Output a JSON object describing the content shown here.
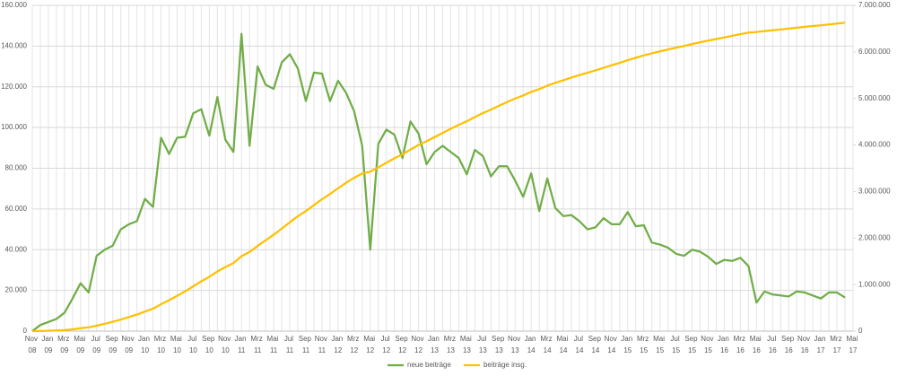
{
  "chart_data": {
    "type": "line",
    "categories": [
      "Nov 08",
      null,
      "Jan 09",
      null,
      "Mrz 09",
      null,
      "Mai 09",
      null,
      "Jul 09",
      null,
      "Sep 09",
      null,
      "Nov 09",
      null,
      "Jan 10",
      null,
      "Mrz 10",
      null,
      "Mai 10",
      null,
      "Jul 10",
      null,
      "Sep 10",
      null,
      "Nov 10",
      null,
      "Jan 11",
      null,
      "Mrz 11",
      null,
      "Mai 11",
      null,
      "Jul 11",
      null,
      "Sep 11",
      null,
      "Nov 11",
      null,
      "Jan 12",
      null,
      "Mrz 12",
      null,
      "Mai 12",
      null,
      "Jul 12",
      null,
      "Sep 12",
      null,
      "Nov 12",
      null,
      "Jan 13",
      null,
      "Mrz 13",
      null,
      "Mai 13",
      null,
      "Jul 13",
      null,
      "Sep 13",
      null,
      "Nov 13",
      null,
      "Jan 14",
      null,
      "Mrz 14",
      null,
      "Mai 14",
      null,
      "Jul 14",
      null,
      "Sep 14",
      null,
      "Nov 14",
      null,
      "Jan 15",
      null,
      "Mrz 15",
      null,
      "Mai 15",
      null,
      "Jul 15",
      null,
      "Sep 15",
      null,
      "Nov 15",
      null,
      "Jan 16",
      null,
      "Mrz 16",
      null,
      "Mai 16",
      null,
      "Jul 16",
      null,
      "Sep 16",
      null,
      "Nov 16",
      null,
      "Jan 17",
      null,
      "Mrz 17",
      null,
      "Mai 17"
    ],
    "series": [
      {
        "name": "neue beiträge",
        "color": "#70ad47",
        "values": [
          0,
          3000,
          4500,
          6000,
          9000,
          16000,
          23500,
          19000,
          37000,
          40000,
          42000,
          50000,
          52500,
          54000,
          65000,
          61000,
          95000,
          87000,
          95000,
          95500,
          107000,
          109000,
          96000,
          115000,
          94000,
          88000,
          146000,
          91000,
          130000,
          121000,
          119000,
          132000,
          136000,
          129000,
          113000,
          127000,
          126500,
          113000,
          123000,
          117000,
          108000,
          91000,
          40000,
          92000,
          99000,
          96500,
          85000,
          103000,
          97000,
          82000,
          88000,
          91000,
          88000,
          85000,
          77000,
          89000,
          86000,
          76000,
          81000,
          81000,
          74000,
          66000,
          77500,
          59000,
          75000,
          60500,
          56500,
          57000,
          54000,
          50000,
          51000,
          55500,
          52500,
          52500,
          58500,
          51500,
          52000,
          43500,
          42500,
          41000,
          38000,
          37000,
          40000,
          39000,
          36500,
          33000,
          35000,
          34500,
          36000,
          32000,
          14000,
          19500,
          18000,
          17500,
          17000,
          19500,
          19000,
          17500,
          16000,
          19000,
          19000,
          16500,
          null
        ]
      },
      {
        "name": "beiträge insg.",
        "color": "#ffc000",
        "axis": "y2",
        "values": [
          0,
          3000,
          7500,
          13500,
          22500,
          38500,
          62000,
          81000,
          118000,
          158000,
          200000,
          250000,
          302500,
          356500,
          421500,
          482500,
          577500,
          664500,
          759500,
          855000,
          962000,
          1071000,
          1167000,
          1282000,
          1376000,
          1464000,
          1610000,
          1701000,
          1831000,
          1952000,
          2071000,
          2203000,
          2339000,
          2468000,
          2581000,
          2708000,
          2834500,
          2947500,
          3070500,
          3187500,
          3295500,
          3386500,
          3426500,
          3518500,
          3617500,
          3714000,
          3799000,
          3902000,
          3999000,
          4081000,
          4169000,
          4260000,
          4348000,
          4433000,
          4510000,
          4599000,
          4685000,
          4761000,
          4842000,
          4923000,
          4997000,
          5063000,
          5140500,
          5199500,
          5274500,
          5335000,
          5391500,
          5448500,
          5502500,
          5552500,
          5603500,
          5659000,
          5711500,
          5764000,
          5822500,
          5874000,
          5926000,
          5969500,
          6012000,
          6053000,
          6091000,
          6128000,
          6168000,
          6207000,
          6243500,
          6276500,
          6311500,
          6346000,
          6382000,
          6414000,
          6428000,
          6447500,
          6465500,
          6483000,
          6500000,
          6519500,
          6538500,
          6556000,
          6572000,
          6591000,
          6610000,
          6626500,
          null
        ]
      }
    ],
    "ylim": [
      0,
      160000
    ],
    "yticks": [
      0,
      {
        "value": 20000,
        "label": "20.000"
      },
      {
        "value": 40000,
        "label": "40.000"
      },
      {
        "value": 60000,
        "label": "60.000"
      },
      {
        "value": 80000,
        "label": "80.000"
      },
      {
        "value": 100000,
        "label": "100.000"
      },
      {
        "value": 120000,
        "label": "120.000"
      },
      {
        "value": 140000,
        "label": "140.000"
      },
      {
        "value": 160000,
        "label": "160.000"
      }
    ],
    "y2lim": [
      0,
      7000000
    ],
    "y2ticks": [
      0,
      {
        "value": 1000000,
        "label": "1.000.000"
      },
      {
        "value": 2000000,
        "label": "2.000.000"
      },
      {
        "value": 3000000,
        "label": "3.000.000"
      },
      {
        "value": 4000000,
        "label": "4.000.000"
      },
      {
        "value": 5000000,
        "label": "5.000.000"
      },
      {
        "value": 6000000,
        "label": "6.000.000"
      },
      {
        "value": 7000000,
        "label": "7.000.000"
      }
    ],
    "grid": true,
    "legend": "bottom"
  }
}
